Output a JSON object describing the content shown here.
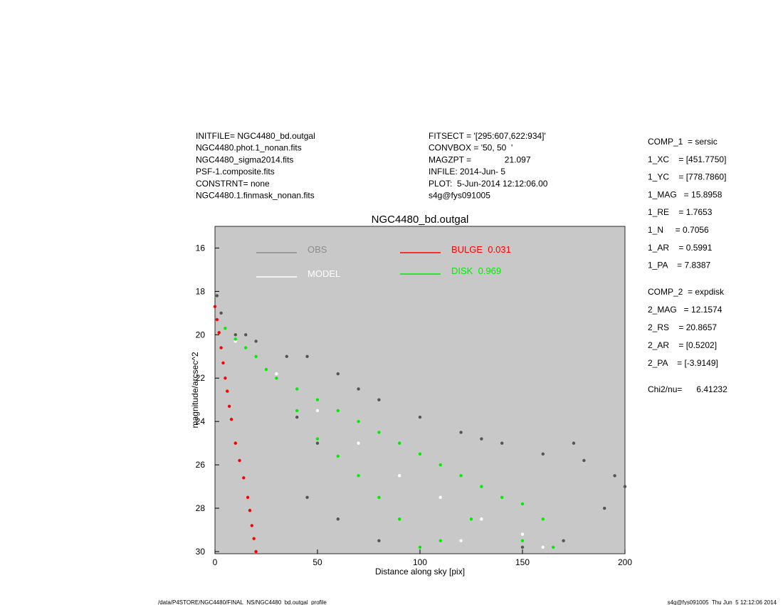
{
  "info_left": [
    "INITFILE= NGC4480_bd.outgal",
    "NGC4480.phot.1_nonan.fits",
    "NGC4480_sigma2014.fits",
    "PSF-1.composite.fits",
    "CONSTRNT= none",
    "NGC4480.1.finmask_nonan.fits"
  ],
  "info_middle": [
    "FITSECT = '[295:607,622:934]'",
    "CONVBOX = '50, 50  '",
    "MAGZPT =              21.097",
    "INFILE: 2014-Jun- 5",
    "PLOT:  5-Jun-2014 12:12:06.00",
    "s4g@fys091005"
  ],
  "params_comp1": [
    "COMP_1  = sersic",
    "1_XC    = [451.7750]",
    "1_YC    = [778.7860]",
    "1_MAG   = 15.8958",
    "1_RE    = 1.7653",
    "1_N     = 0.7056",
    "1_AR    = 0.5991",
    "1_PA    = 7.8387"
  ],
  "params_comp2": [
    "COMP_2  = expdisk",
    "2_MAG   = 12.1574",
    "2_RS    = 20.8657",
    "2_AR    = [0.5202]",
    "2_PA    = [-3.9149]"
  ],
  "chi2": "Chi2/nu=      6.41232",
  "footer_left": "/data/P4STORE/NGC4480/FINAL_NS/NGC4480_bd.outgal_profile",
  "footer_right": "s4g@fys091005  Thu Jun  5 12:12:06 2014",
  "chart_data": {
    "type": "scatter",
    "title": "NGC4480_bd.outgal",
    "x_label": "Distance along sky [pix]",
    "y_label": "magnitude/arcsec^2",
    "xlim": [
      0,
      200
    ],
    "xticks": [
      0,
      50,
      100,
      150,
      200
    ],
    "ylim": [
      15,
      30.1
    ],
    "y_inverted": true,
    "yticks": [
      16,
      18,
      20,
      22,
      24,
      26,
      28,
      30
    ],
    "background": "#c8c8c8",
    "series": [
      {
        "name": "OBS",
        "color": "#555555",
        "legend_color": "#8c8c8c",
        "x": [
          1,
          3,
          10,
          15,
          20,
          35,
          45,
          60,
          40,
          50,
          70,
          80,
          100,
          120,
          140,
          160,
          180,
          195,
          200,
          190,
          170,
          150,
          60,
          80,
          45,
          130,
          175
        ],
        "values": [
          18.2,
          19.0,
          20.0,
          20.0,
          20.3,
          21.0,
          21.0,
          21.8,
          23.8,
          25.0,
          22.5,
          23.0,
          23.8,
          24.5,
          25.0,
          25.5,
          25.8,
          26.5,
          27.0,
          28.0,
          29.5,
          29.8,
          28.5,
          29.5,
          27.5,
          24.8,
          25.0
        ]
      },
      {
        "name": "MODEL",
        "color": "#ffffff",
        "legend_color": "#ffffff",
        "x": [
          10,
          30,
          50,
          70,
          90,
          110,
          130,
          150,
          160,
          120
        ],
        "values": [
          20.3,
          21.8,
          23.5,
          25.0,
          26.5,
          27.5,
          28.5,
          29.2,
          29.8,
          29.5
        ]
      },
      {
        "name": "BULGE  0.031",
        "color": "#ff0000",
        "legend_color": "#ff0000",
        "x": [
          0,
          1,
          2,
          3,
          4,
          5,
          6,
          7,
          8,
          10,
          12,
          14,
          16,
          17,
          18,
          19,
          20
        ],
        "values": [
          18.7,
          19.3,
          19.9,
          20.6,
          21.3,
          22.0,
          22.6,
          23.3,
          23.9,
          25.0,
          25.8,
          26.6,
          27.5,
          28.1,
          28.8,
          29.4,
          30.0
        ]
      },
      {
        "name": "DISK  0.969",
        "color": "#00ee00",
        "legend_color": "#00ee00",
        "x": [
          5,
          10,
          15,
          20,
          25,
          30,
          40,
          40,
          50,
          50,
          60,
          60,
          70,
          70,
          80,
          80,
          90,
          90,
          100,
          100,
          110,
          110,
          120,
          125,
          130,
          140,
          150,
          160,
          150,
          165
        ],
        "values": [
          19.7,
          20.2,
          20.6,
          21.0,
          21.6,
          22.0,
          22.5,
          23.5,
          23.0,
          24.8,
          23.5,
          25.6,
          24.0,
          26.5,
          24.5,
          27.5,
          25.0,
          28.5,
          25.5,
          29.8,
          26.0,
          29.5,
          26.5,
          28.5,
          27.0,
          27.5,
          27.8,
          28.5,
          29.5,
          29.8
        ]
      }
    ]
  }
}
